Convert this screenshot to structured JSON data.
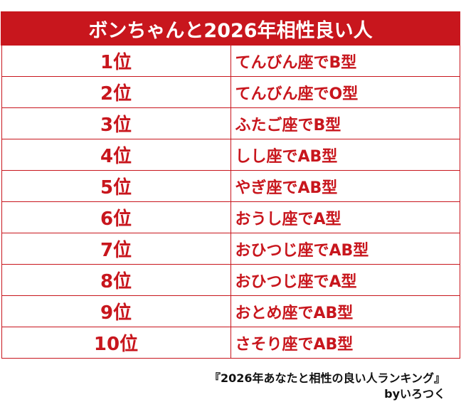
{
  "title": "ボンちゃんと2026年相性良い人",
  "rankings": [
    {
      "rank": "1位",
      "result": "てんびん座でB型"
    },
    {
      "rank": "2位",
      "result": "てんびん座でO型"
    },
    {
      "rank": "3位",
      "result": "ふたご座でB型"
    },
    {
      "rank": "4位",
      "result": "しし座でAB型"
    },
    {
      "rank": "5位",
      "result": "やぎ座でAB型"
    },
    {
      "rank": "6位",
      "result": "おうし座でA型"
    },
    {
      "rank": "7位",
      "result": "おひつじ座でAB型"
    },
    {
      "rank": "8位",
      "result": "おひつじ座でA型"
    },
    {
      "rank": "9位",
      "result": "おとめ座でAB型"
    },
    {
      "rank": "10位",
      "result": "さそり座でAB型"
    }
  ],
  "footer": {
    "source": "『2026年あなたと相性の良い人ランキング』",
    "credit": "byいろつく"
  },
  "colors": {
    "accent": "#c8161d",
    "background": "#ffffff"
  }
}
